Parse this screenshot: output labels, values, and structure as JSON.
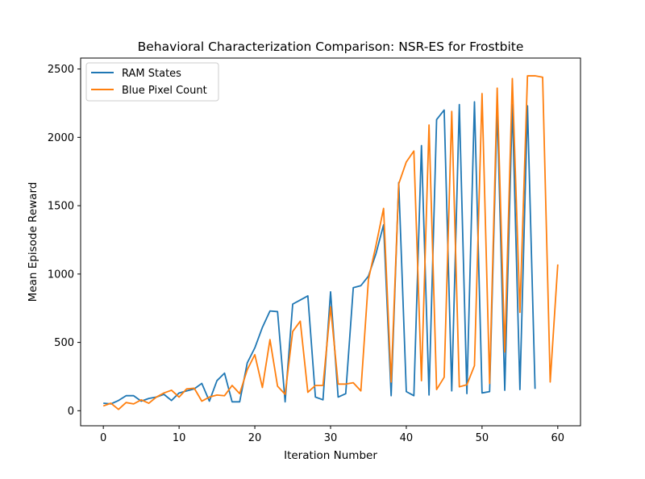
{
  "chart_data": {
    "type": "line",
    "title": "Behavioral Characterization Comparison: NSR-ES for Frostbite",
    "xlabel": "Iteration Number",
    "ylabel": "Mean Episode Reward",
    "xlim": [
      -3,
      63
    ],
    "ylim": [
      -110,
      2580
    ],
    "xticks": [
      0,
      10,
      20,
      30,
      40,
      50,
      60
    ],
    "yticks": [
      0,
      500,
      1000,
      1500,
      2000,
      2500
    ],
    "grid": false,
    "legend_position": "top-left",
    "series": [
      {
        "name": "RAM States",
        "color": "#1f77b4",
        "x": [
          0,
          1,
          2,
          3,
          4,
          5,
          6,
          7,
          8,
          9,
          10,
          11,
          12,
          13,
          14,
          15,
          16,
          17,
          18,
          19,
          20,
          21,
          22,
          23,
          24,
          25,
          26,
          27,
          28,
          29,
          30,
          31,
          32,
          33,
          34,
          35,
          36,
          37,
          38,
          39,
          40,
          41,
          42,
          43,
          44,
          45,
          46,
          47,
          48,
          49,
          50,
          51,
          52,
          53,
          54,
          55,
          56,
          57
        ],
        "y": [
          55,
          50,
          75,
          110,
          110,
          70,
          90,
          100,
          120,
          75,
          130,
          145,
          160,
          200,
          70,
          220,
          275,
          65,
          65,
          350,
          460,
          610,
          730,
          725,
          65,
          780,
          810,
          840,
          100,
          80,
          870,
          100,
          125,
          900,
          915,
          985,
          1150,
          1360,
          110,
          1670,
          140,
          110,
          1940,
          115,
          2130,
          2200,
          145,
          2240,
          125,
          2260,
          130,
          140,
          2220,
          150,
          2240,
          155,
          2230,
          160
        ]
      },
      {
        "name": "Blue Pixel Count",
        "color": "#ff7f0e",
        "x": [
          0,
          1,
          2,
          3,
          4,
          5,
          6,
          7,
          8,
          9,
          10,
          11,
          12,
          13,
          14,
          15,
          16,
          17,
          18,
          19,
          20,
          21,
          22,
          23,
          24,
          25,
          26,
          27,
          28,
          29,
          30,
          31,
          32,
          33,
          34,
          35,
          36,
          37,
          38,
          39,
          40,
          41,
          42,
          43,
          44,
          45,
          46,
          47,
          48,
          49,
          50,
          51,
          52,
          53,
          54,
          55,
          56,
          57,
          58,
          59,
          60
        ],
        "y": [
          35,
          55,
          10,
          60,
          50,
          80,
          55,
          100,
          130,
          150,
          100,
          160,
          165,
          70,
          100,
          115,
          110,
          185,
          125,
          300,
          410,
          170,
          520,
          180,
          120,
          580,
          655,
          135,
          185,
          185,
          760,
          195,
          195,
          205,
          145,
          960,
          1210,
          1480,
          210,
          1660,
          1820,
          1900,
          220,
          2090,
          155,
          245,
          2190,
          175,
          190,
          330,
          2320,
          200,
          2360,
          430,
          2430,
          720,
          2450,
          2450,
          2440,
          210,
          1070
        ]
      }
    ]
  }
}
